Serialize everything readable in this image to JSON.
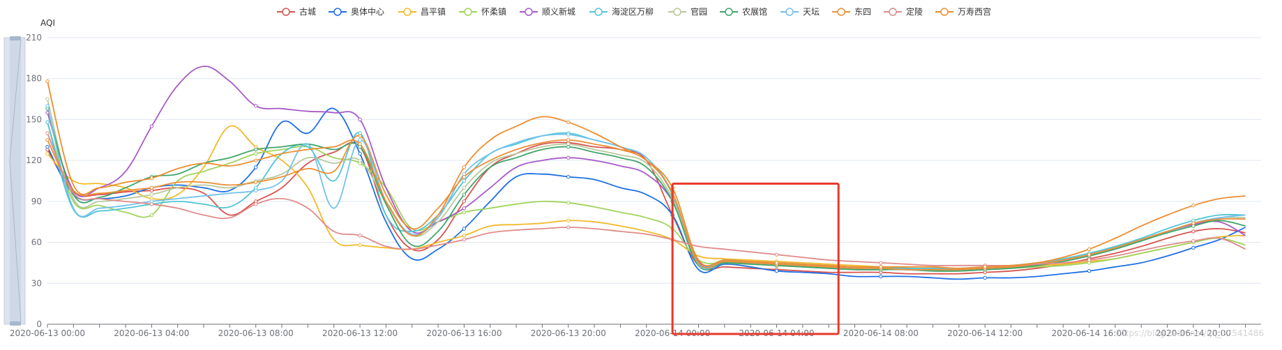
{
  "colors": {
    "axis": "#6e7079",
    "grid": "#e0e6f1",
    "highlight_box": "#e8382a",
    "slider_fill": "#dde3ee",
    "slider_border": "#c5cfdd",
    "slider_handle": "#a7b7cc"
  },
  "chart_data": {
    "type": "line",
    "ylabel": "AQI",
    "xlabel": "",
    "ylim": [
      0,
      210
    ],
    "yticks": [
      "0",
      "30",
      "60",
      "90",
      "120",
      "150",
      "180",
      "210"
    ],
    "x_tick_labels": [
      "2020-06-13 00:00",
      "2020-06-13 04:00",
      "2020-06-13 08:00",
      "2020-06-13 12:00",
      "2020-06-13 16:00",
      "2020-06-13 20:00",
      "2020-06-14 00:00",
      "2020-06-14 04:00",
      "2020-06-14 08:00",
      "2020-06-14 12:00",
      "2020-06-14 16:00",
      "2020-06-14 20:00"
    ],
    "x_hours": [
      0,
      1,
      2,
      3,
      4,
      5,
      6,
      7,
      8,
      9,
      10,
      11,
      12,
      13,
      14,
      15,
      16,
      17,
      18,
      19,
      20,
      21,
      22,
      23,
      24,
      25,
      26,
      27,
      28,
      29,
      30,
      31,
      32,
      33,
      34,
      35,
      36,
      37,
      38,
      39,
      40,
      41,
      42,
      43,
      44,
      45,
      46
    ],
    "legend_position": "top-center",
    "grid": true,
    "highlight_region": {
      "x_start_hour": 24,
      "x_end_hour": 30,
      "y_top": 103
    },
    "watermark": "https://blog.csdn.net/qq_37541486",
    "series": [
      {
        "name": "古城",
        "color": "#d9534f",
        "values": [
          128,
          97,
          95,
          97,
          98,
          100,
          96,
          80,
          90,
          100,
          118,
          126,
          130,
          80,
          55,
          62,
          90,
          115,
          125,
          132,
          133,
          130,
          128,
          120,
          80,
          43,
          42,
          41,
          40,
          39,
          38,
          38,
          38,
          37,
          37,
          37,
          38,
          39,
          41,
          44,
          48,
          52,
          57,
          63,
          68,
          70,
          67
        ]
      },
      {
        "name": "奥体中心",
        "color": "#1e6fe5",
        "values": [
          130,
          95,
          92,
          94,
          100,
          102,
          100,
          98,
          115,
          148,
          140,
          158,
          125,
          75,
          48,
          55,
          70,
          90,
          108,
          110,
          108,
          106,
          100,
          95,
          80,
          40,
          44,
          42,
          39,
          38,
          37,
          35,
          35,
          35,
          34,
          33,
          34,
          34,
          35,
          37,
          39,
          42,
          45,
          50,
          56,
          62,
          71
        ]
      },
      {
        "name": "昌平镇",
        "color": "#f3b92a",
        "values": [
          125,
          105,
          103,
          100,
          92,
          95,
          115,
          145,
          130,
          120,
          100,
          62,
          58,
          56,
          55,
          60,
          65,
          72,
          73,
          74,
          76,
          75,
          72,
          68,
          62,
          50,
          48,
          47,
          46,
          45,
          44,
          43,
          42,
          41,
          41,
          40,
          41,
          42,
          43,
          44,
          46,
          48,
          52,
          56,
          60,
          64,
          65
        ]
      },
      {
        "name": "怀柔镇",
        "color": "#9fd45a",
        "values": [
          148,
          90,
          87,
          82,
          80,
          105,
          112,
          118,
          125,
          128,
          130,
          122,
          118,
          100,
          70,
          75,
          82,
          85,
          88,
          90,
          89,
          86,
          82,
          78,
          70,
          47,
          45,
          44,
          43,
          42,
          41,
          40,
          40,
          40,
          39,
          39,
          40,
          41,
          42,
          43,
          45,
          48,
          52,
          56,
          60,
          63,
          58
        ]
      },
      {
        "name": "顺义新城",
        "color": "#a75ac8",
        "values": [
          155,
          98,
          100,
          112,
          145,
          175,
          189,
          178,
          160,
          158,
          156,
          155,
          150,
          100,
          68,
          75,
          85,
          100,
          115,
          120,
          122,
          120,
          116,
          110,
          90,
          46,
          46,
          45,
          44,
          43,
          42,
          41,
          41,
          40,
          40,
          40,
          41,
          42,
          44,
          47,
          51,
          56,
          62,
          68,
          73,
          75,
          65
        ]
      },
      {
        "name": "海淀区万柳",
        "color": "#50c5d7",
        "values": [
          148,
          84,
          83,
          85,
          88,
          90,
          88,
          86,
          100,
          125,
          130,
          105,
          140,
          80,
          68,
          80,
          105,
          125,
          132,
          138,
          140,
          135,
          130,
          122,
          95,
          45,
          47,
          46,
          45,
          44,
          43,
          42,
          42,
          41,
          41,
          41,
          42,
          43,
          45,
          48,
          52,
          57,
          63,
          70,
          76,
          80,
          80
        ]
      },
      {
        "name": "官园",
        "color": "#b8c89a",
        "values": [
          165,
          92,
          90,
          92,
          95,
          100,
          102,
          100,
          105,
          110,
          122,
          118,
          120,
          90,
          65,
          75,
          100,
          118,
          125,
          130,
          132,
          128,
          124,
          118,
          92,
          44,
          46,
          45,
          44,
          43,
          42,
          41,
          41,
          40,
          40,
          40,
          41,
          42,
          44,
          47,
          51,
          56,
          62,
          68,
          74,
          78,
          78
        ]
      },
      {
        "name": "农展馆",
        "color": "#3fa56a",
        "values": [
          158,
          95,
          93,
          100,
          108,
          110,
          118,
          122,
          128,
          130,
          132,
          128,
          130,
          88,
          58,
          68,
          95,
          115,
          122,
          128,
          130,
          126,
          122,
          115,
          90,
          43,
          45,
          44,
          43,
          42,
          41,
          40,
          40,
          40,
          39,
          39,
          40,
          41,
          43,
          46,
          50,
          55,
          61,
          67,
          72,
          76,
          72
        ]
      },
      {
        "name": "天坛",
        "color": "#72c1ec",
        "values": [
          160,
          85,
          85,
          87,
          90,
          92,
          94,
          96,
          98,
          105,
          132,
          85,
          135,
          90,
          66,
          78,
          110,
          125,
          133,
          138,
          139,
          135,
          130,
          122,
          96,
          44,
          46,
          45,
          44,
          43,
          42,
          41,
          41,
          40,
          40,
          40,
          41,
          42,
          44,
          47,
          51,
          56,
          62,
          68,
          74,
          78,
          80
        ]
      },
      {
        "name": "东四",
        "color": "#ec8f35",
        "values": [
          135,
          98,
          96,
          98,
          100,
          104,
          104,
          102,
          104,
          108,
          114,
          112,
          138,
          95,
          70,
          85,
          108,
          120,
          128,
          133,
          135,
          132,
          128,
          120,
          96,
          45,
          46,
          45,
          44,
          43,
          42,
          41,
          41,
          40,
          40,
          40,
          41,
          42,
          44,
          47,
          51,
          56,
          62,
          68,
          74,
          77,
          77
        ]
      },
      {
        "name": "定陵",
        "color": "#e08a8a",
        "values": [
          140,
          96,
          92,
          90,
          88,
          85,
          80,
          78,
          88,
          92,
          85,
          68,
          65,
          57,
          55,
          58,
          62,
          67,
          69,
          70,
          71,
          70,
          68,
          66,
          62,
          57,
          55,
          53,
          51,
          49,
          47,
          46,
          45,
          44,
          43,
          43,
          43,
          43,
          44,
          45,
          47,
          50,
          54,
          58,
          61,
          63,
          55
        ]
      },
      {
        "name": "万寿西宫",
        "color": "#ee8d2f",
        "values": [
          178,
          102,
          100,
          104,
          107,
          114,
          118,
          116,
          120,
          125,
          128,
          130,
          132,
          90,
          65,
          80,
          115,
          135,
          145,
          152,
          148,
          140,
          130,
          120,
          100,
          47,
          47,
          46,
          45,
          44,
          43,
          42,
          42,
          42,
          42,
          41,
          42,
          43,
          45,
          49,
          55,
          63,
          72,
          80,
          87,
          92,
          94
        ]
      }
    ]
  }
}
